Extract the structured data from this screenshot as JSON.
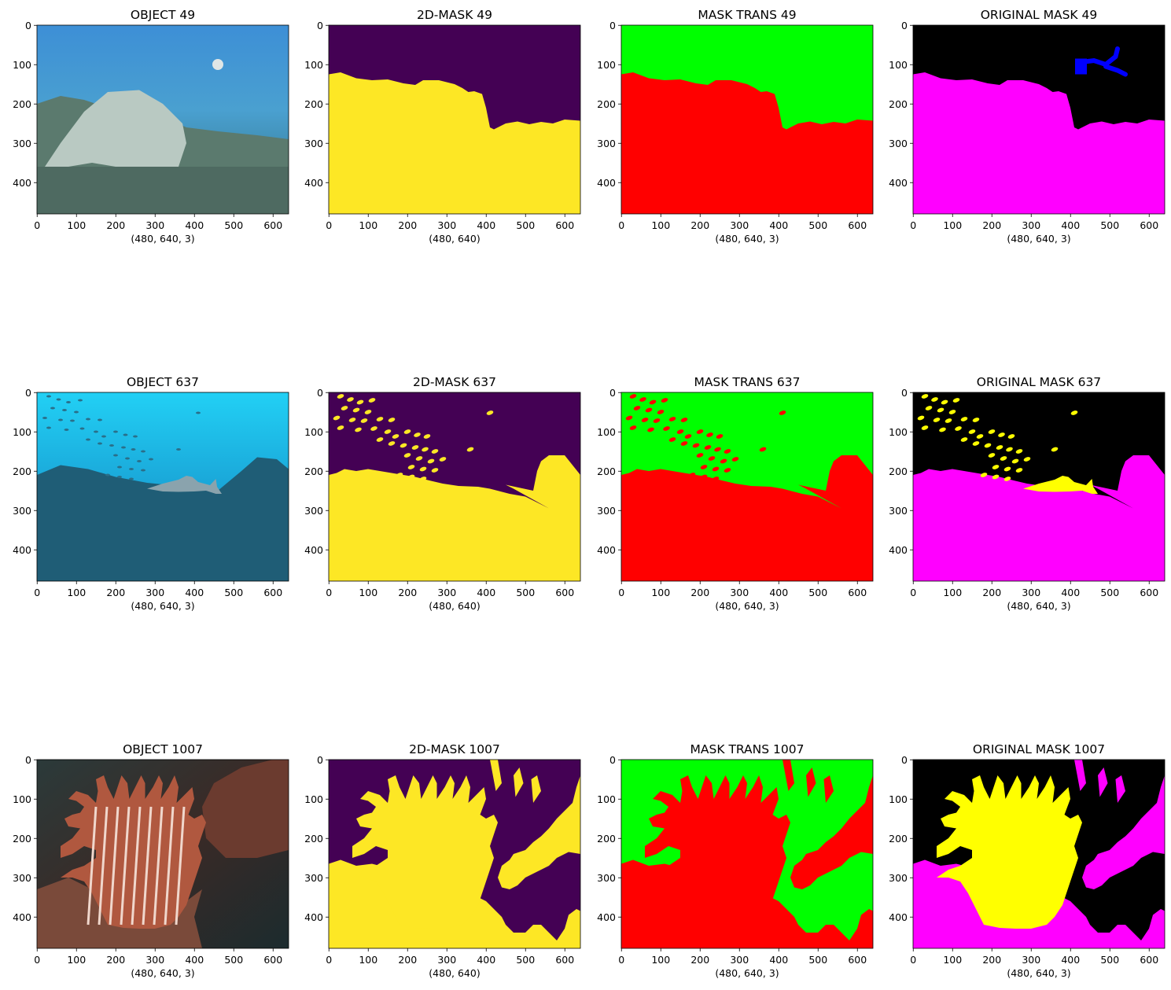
{
  "chart_data": {
    "type": "image-grid",
    "x_ticks": [
      "0",
      "100",
      "200",
      "300",
      "400",
      "500",
      "600"
    ],
    "y_ticks": [
      "0",
      "100",
      "200",
      "300",
      "400"
    ],
    "colors": {
      "viridis_background": "#440154",
      "viridis_foreground": "#fde725",
      "trans_background": "#00ff00",
      "trans_foreground": "#ff0000",
      "orig_background": "#000000",
      "orig_reef": "#ff00ff",
      "orig_fish": "#ffff00",
      "orig_diver": "#0000ff"
    },
    "rows": [
      {
        "panels": [
          {
            "kind": "photo-reef",
            "title": "OBJECT 49",
            "xlabel": "(480, 640, 3)"
          },
          {
            "kind": "mask2d",
            "title": "2D-MASK 49",
            "xlabel": "(480, 640)"
          },
          {
            "kind": "trans",
            "title": "MASK TRANS 49",
            "xlabel": "(480, 640, 3)"
          },
          {
            "kind": "orig",
            "title": "ORIGINAL MASK 49",
            "xlabel": "(480, 640, 3)"
          }
        ]
      },
      {
        "panels": [
          {
            "kind": "photo-shark",
            "title": "OBJECT 637",
            "xlabel": "(480, 640, 3)"
          },
          {
            "kind": "mask2d",
            "title": "2D-MASK 637",
            "xlabel": "(480, 640)"
          },
          {
            "kind": "trans",
            "title": "MASK TRANS 637",
            "xlabel": "(480, 640, 3)"
          },
          {
            "kind": "orig",
            "title": "ORIGINAL MASK 637",
            "xlabel": "(480, 640, 3)"
          }
        ]
      },
      {
        "panels": [
          {
            "kind": "photo-lion",
            "title": "OBJECT 1007",
            "xlabel": "(480, 640, 3)"
          },
          {
            "kind": "mask2d",
            "title": "2D-MASK 1007",
            "xlabel": "(480, 640)"
          },
          {
            "kind": "trans",
            "title": "MASK TRANS 1007",
            "xlabel": "(480, 640, 3)"
          },
          {
            "kind": "orig",
            "title": "ORIGINAL MASK 1007",
            "xlabel": "(480, 640, 3)"
          }
        ]
      }
    ]
  }
}
